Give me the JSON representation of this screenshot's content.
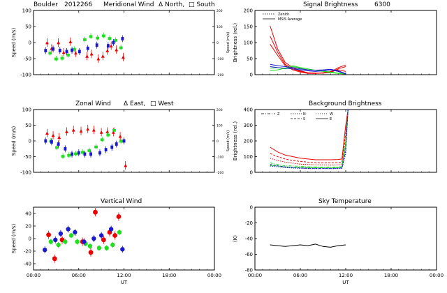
{
  "xaxis": {
    "range": [
      0,
      24
    ],
    "ticks": [
      0,
      6,
      12,
      18,
      24
    ],
    "tick_labels": [
      "00:00",
      "06:00",
      "12:00",
      "18:00",
      "00:00"
    ],
    "label": "UT"
  },
  "header": {
    "site": "Boulder",
    "date_code": "2012266"
  },
  "colors": {
    "red": "#ee0000",
    "green": "#22dd22",
    "blue": "#1a1acc",
    "black": "#000000"
  },
  "chart_data": [
    {
      "id": "meridional",
      "type": "scatter",
      "title": "Meridional Wind",
      "legend": [
        "Δ North,",
        "□ South"
      ],
      "ylabel": "Speed (m/s)",
      "ylim": [
        -100,
        100
      ],
      "yticks": [
        -100,
        -50,
        0,
        50,
        100
      ],
      "y2label": "Speed (m/s)",
      "y2ticks": [
        "-200",
        "-100",
        "0",
        "100",
        "200"
      ],
      "series": [
        {
          "name": "red",
          "x": [
            1.8,
            2.4,
            3.3,
            4.0,
            4.9,
            5.6,
            7.1,
            7.7,
            8.6,
            9.2,
            9.8,
            10.3,
            11.0,
            11.9
          ],
          "y": [
            0,
            -18,
            0,
            -30,
            3,
            -32,
            -42,
            -35,
            -50,
            -42,
            -25,
            -10,
            -22,
            -45
          ]
        },
        {
          "name": "green",
          "x": [
            2.2,
            3.0,
            3.8,
            4.6,
            5.4,
            6.8,
            7.6,
            8.5,
            9.3,
            10.1,
            10.9,
            11.6
          ],
          "y": [
            -32,
            -50,
            -48,
            -38,
            -20,
            10,
            20,
            15,
            22,
            14,
            8,
            -15
          ]
        },
        {
          "name": "blue",
          "x": [
            1.6,
            2.6,
            3.5,
            4.4,
            5.1,
            6.1,
            7.2,
            8.4,
            9.9,
            10.6,
            11.8
          ],
          "y": [
            -25,
            -20,
            -25,
            -28,
            -24,
            -28,
            -18,
            -8,
            -10,
            0,
            12
          ]
        }
      ]
    },
    {
      "id": "zonal",
      "type": "scatter",
      "title": "Zonal Wind",
      "legend": [
        "Δ East,",
        "□ West"
      ],
      "ylabel": "Speed (m/s)",
      "ylim": [
        -100,
        100
      ],
      "yticks": [
        -100,
        -50,
        0,
        50,
        100
      ],
      "y2label": "Speed (m/s)",
      "y2ticks": [
        "-200",
        "-100",
        "0",
        "100",
        "200"
      ],
      "series": [
        {
          "name": "red",
          "x": [
            1.8,
            2.6,
            3.4,
            4.4,
            5.3,
            6.3,
            7.2,
            8.0,
            9.0,
            9.8,
            10.6,
            11.5,
            12.2
          ],
          "y": [
            25,
            18,
            12,
            30,
            35,
            32,
            38,
            35,
            28,
            30,
            28,
            15,
            -78
          ]
        },
        {
          "name": "green",
          "x": [
            2.3,
            3.1,
            3.9,
            4.7,
            5.6,
            6.5,
            7.4,
            8.3,
            9.1,
            9.9,
            10.7,
            11.6
          ],
          "y": [
            0,
            -20,
            -48,
            -45,
            -40,
            -35,
            -30,
            -18,
            5,
            20,
            35,
            0
          ]
        },
        {
          "name": "blue",
          "x": [
            1.6,
            2.4,
            3.3,
            4.2,
            5.1,
            6.0,
            6.8,
            7.6,
            8.8,
            9.6,
            10.4,
            11.0,
            12.0
          ],
          "y": [
            0,
            -3,
            -10,
            -25,
            -42,
            -38,
            -42,
            -42,
            -38,
            -28,
            -20,
            -10,
            0
          ]
        }
      ]
    },
    {
      "id": "vertical",
      "type": "scatter",
      "title": "Vertical Wind",
      "ylabel": "Speed (m/s)",
      "ylim": [
        -50,
        50
      ],
      "yticks": [
        -40,
        -20,
        0,
        20,
        40
      ],
      "series": [
        {
          "name": "red",
          "x": [
            2.0,
            2.8,
            3.8,
            6.5,
            7.6,
            8.2,
            9.3,
            10.1,
            10.8,
            11.3
          ],
          "y": [
            6,
            -32,
            -2,
            -5,
            -22,
            42,
            -2,
            10,
            5,
            35
          ]
        },
        {
          "name": "green",
          "x": [
            2.3,
            3.3,
            4.2,
            5.0,
            5.8,
            6.9,
            7.5,
            8.7,
            9.7,
            10.5,
            11.4
          ],
          "y": [
            -5,
            -10,
            -5,
            5,
            -5,
            -8,
            -12,
            -15,
            -15,
            -10,
            10
          ]
        },
        {
          "name": "blue",
          "x": [
            1.5,
            2.9,
            3.6,
            4.6,
            5.5,
            6.7,
            8.0,
            9.0,
            10.3,
            11.8
          ],
          "y": [
            -18,
            -2,
            8,
            15,
            10,
            -5,
            0,
            5,
            15,
            -17
          ]
        }
      ]
    },
    {
      "id": "signal",
      "type": "line",
      "title": "Signal Brightness",
      "wavelength": "6300",
      "ylabel": "Brightness (rel.)",
      "ylim": [
        0,
        200
      ],
      "yticks": [
        0,
        50,
        100,
        150,
        200
      ],
      "legend": [
        "Zenith",
        "MSIS Average"
      ],
      "series": [
        {
          "name": "red",
          "x": [
            2,
            3,
            4,
            5,
            6,
            7,
            8,
            9,
            10,
            11,
            12
          ],
          "y": [
            152,
            80,
            38,
            22,
            12,
            6,
            5,
            5,
            6,
            18,
            25
          ]
        },
        {
          "name": "red",
          "x": [
            2,
            3,
            4,
            5,
            6,
            7,
            8,
            9,
            10,
            11,
            12
          ],
          "y": [
            120,
            70,
            32,
            18,
            10,
            5,
            4,
            5,
            8,
            22,
            30
          ]
        },
        {
          "name": "red",
          "x": [
            2,
            3,
            4,
            5,
            6,
            7,
            8,
            9,
            10,
            11,
            12
          ],
          "y": [
            95,
            60,
            28,
            15,
            8,
            4,
            4,
            6,
            10,
            15,
            10
          ]
        },
        {
          "name": "green",
          "x": [
            2,
            3,
            4,
            5,
            6,
            7,
            8,
            9,
            10,
            11,
            12
          ],
          "y": [
            20,
            22,
            18,
            25,
            20,
            15,
            14,
            12,
            8,
            5,
            2
          ]
        },
        {
          "name": "green",
          "x": [
            2,
            3,
            4,
            5,
            6,
            7,
            8,
            9,
            10,
            11,
            12
          ],
          "y": [
            12,
            15,
            20,
            28,
            22,
            18,
            14,
            10,
            6,
            4,
            2
          ]
        },
        {
          "name": "blue",
          "x": [
            2,
            3,
            4,
            5,
            6,
            7,
            8,
            9,
            10,
            11,
            12
          ],
          "y": [
            25,
            22,
            20,
            18,
            15,
            12,
            10,
            12,
            15,
            10,
            2
          ]
        },
        {
          "name": "blue",
          "x": [
            2,
            3,
            4,
            5,
            6,
            7,
            8,
            9,
            10,
            11,
            12
          ],
          "y": [
            32,
            28,
            25,
            22,
            18,
            15,
            14,
            15,
            17,
            12,
            3
          ]
        }
      ]
    },
    {
      "id": "background",
      "type": "line",
      "title": "Background Brightness",
      "ylabel": "Brightness (rel.)",
      "ylim": [
        0,
        400
      ],
      "yticks": [
        0,
        100,
        200,
        300,
        400
      ],
      "legend": [
        "Z",
        "N",
        "S",
        "W",
        "E"
      ],
      "series": [
        {
          "name": "red",
          "x": [
            2,
            3,
            4,
            5,
            6,
            7,
            8,
            9,
            10,
            11,
            11.5,
            12,
            12.3
          ],
          "y": [
            160,
            130,
            110,
            100,
            90,
            85,
            80,
            80,
            80,
            82,
            85,
            300,
            400
          ]
        },
        {
          "name": "red",
          "x": [
            2,
            3,
            4,
            5,
            6,
            7,
            8,
            9,
            10,
            11,
            11.5,
            12,
            12.3
          ],
          "y": [
            120,
            100,
            85,
            75,
            70,
            65,
            62,
            60,
            60,
            62,
            65,
            250,
            400
          ]
        },
        {
          "name": "red",
          "x": [
            2,
            3,
            4,
            5,
            6,
            7,
            8,
            9,
            10,
            11,
            11.5,
            12,
            12.3
          ],
          "y": [
            90,
            75,
            65,
            58,
            52,
            50,
            48,
            47,
            46,
            48,
            50,
            200,
            400
          ]
        },
        {
          "name": "green",
          "x": [
            2,
            3,
            4,
            5,
            6,
            7,
            8,
            9,
            10,
            11,
            11.5,
            12,
            12.3
          ],
          "y": [
            60,
            50,
            42,
            40,
            38,
            35,
            34,
            33,
            33,
            34,
            36,
            220,
            400
          ]
        },
        {
          "name": "green",
          "x": [
            2,
            3,
            4,
            5,
            6,
            7,
            8,
            9,
            10,
            11,
            11.5,
            12,
            12.3
          ],
          "y": [
            45,
            40,
            35,
            32,
            30,
            30,
            29,
            28,
            28,
            29,
            30,
            180,
            400
          ]
        },
        {
          "name": "blue",
          "x": [
            2,
            3,
            4,
            5,
            6,
            7,
            8,
            9,
            10,
            11,
            11.5,
            12,
            12.3
          ],
          "y": [
            50,
            42,
            35,
            30,
            28,
            26,
            25,
            25,
            25,
            26,
            28,
            150,
            400
          ]
        },
        {
          "name": "blue",
          "x": [
            2,
            3,
            4,
            5,
            6,
            7,
            8,
            9,
            10,
            11,
            11.5,
            12,
            12.3
          ],
          "y": [
            40,
            35,
            30,
            27,
            25,
            24,
            23,
            23,
            23,
            24,
            25,
            120,
            400
          ]
        }
      ]
    },
    {
      "id": "skytemp",
      "type": "line",
      "title": "Sky Temperature",
      "ylabel": "(K)",
      "ylim": [
        -80,
        0
      ],
      "yticks": [
        -80,
        -60,
        -40,
        -20,
        0
      ],
      "series": [
        {
          "name": "black",
          "x": [
            2,
            3,
            4,
            5,
            6,
            7,
            8,
            9,
            10,
            11,
            12
          ],
          "y": [
            -48,
            -49,
            -50,
            -49,
            -48,
            -49,
            -47,
            -50,
            -51,
            -49,
            -48
          ]
        }
      ]
    }
  ]
}
